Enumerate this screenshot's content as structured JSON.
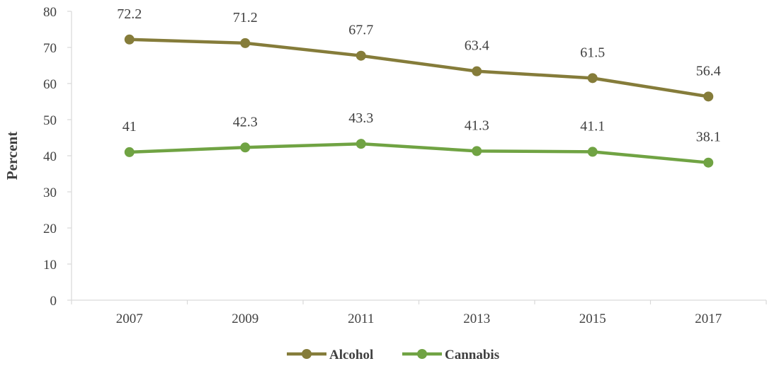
{
  "chart_data": {
    "type": "line",
    "x": [
      "2007",
      "2009",
      "2011",
      "2013",
      "2015",
      "2017"
    ],
    "series": [
      {
        "name": "Alcohol",
        "values": [
          72.2,
          71.2,
          67.7,
          63.4,
          61.5,
          56.4
        ],
        "labels": [
          "72.2",
          "71.2",
          "67.7",
          "63.4",
          "61.5",
          "56.4"
        ],
        "color": "#857c3a"
      },
      {
        "name": "Cannabis",
        "values": [
          41,
          42.3,
          43.3,
          41.3,
          41.1,
          38.1
        ],
        "labels": [
          "41",
          "42.3",
          "43.3",
          "41.3",
          "41.1",
          "38.1"
        ],
        "color": "#70a343"
      }
    ],
    "ylabel": "Percent",
    "xlabel": "",
    "ylim": [
      0,
      80
    ],
    "yticks": [
      "0",
      "10",
      "20",
      "30",
      "40",
      "50",
      "60",
      "70",
      "80"
    ],
    "grid": false,
    "legend": "bottom-center"
  }
}
